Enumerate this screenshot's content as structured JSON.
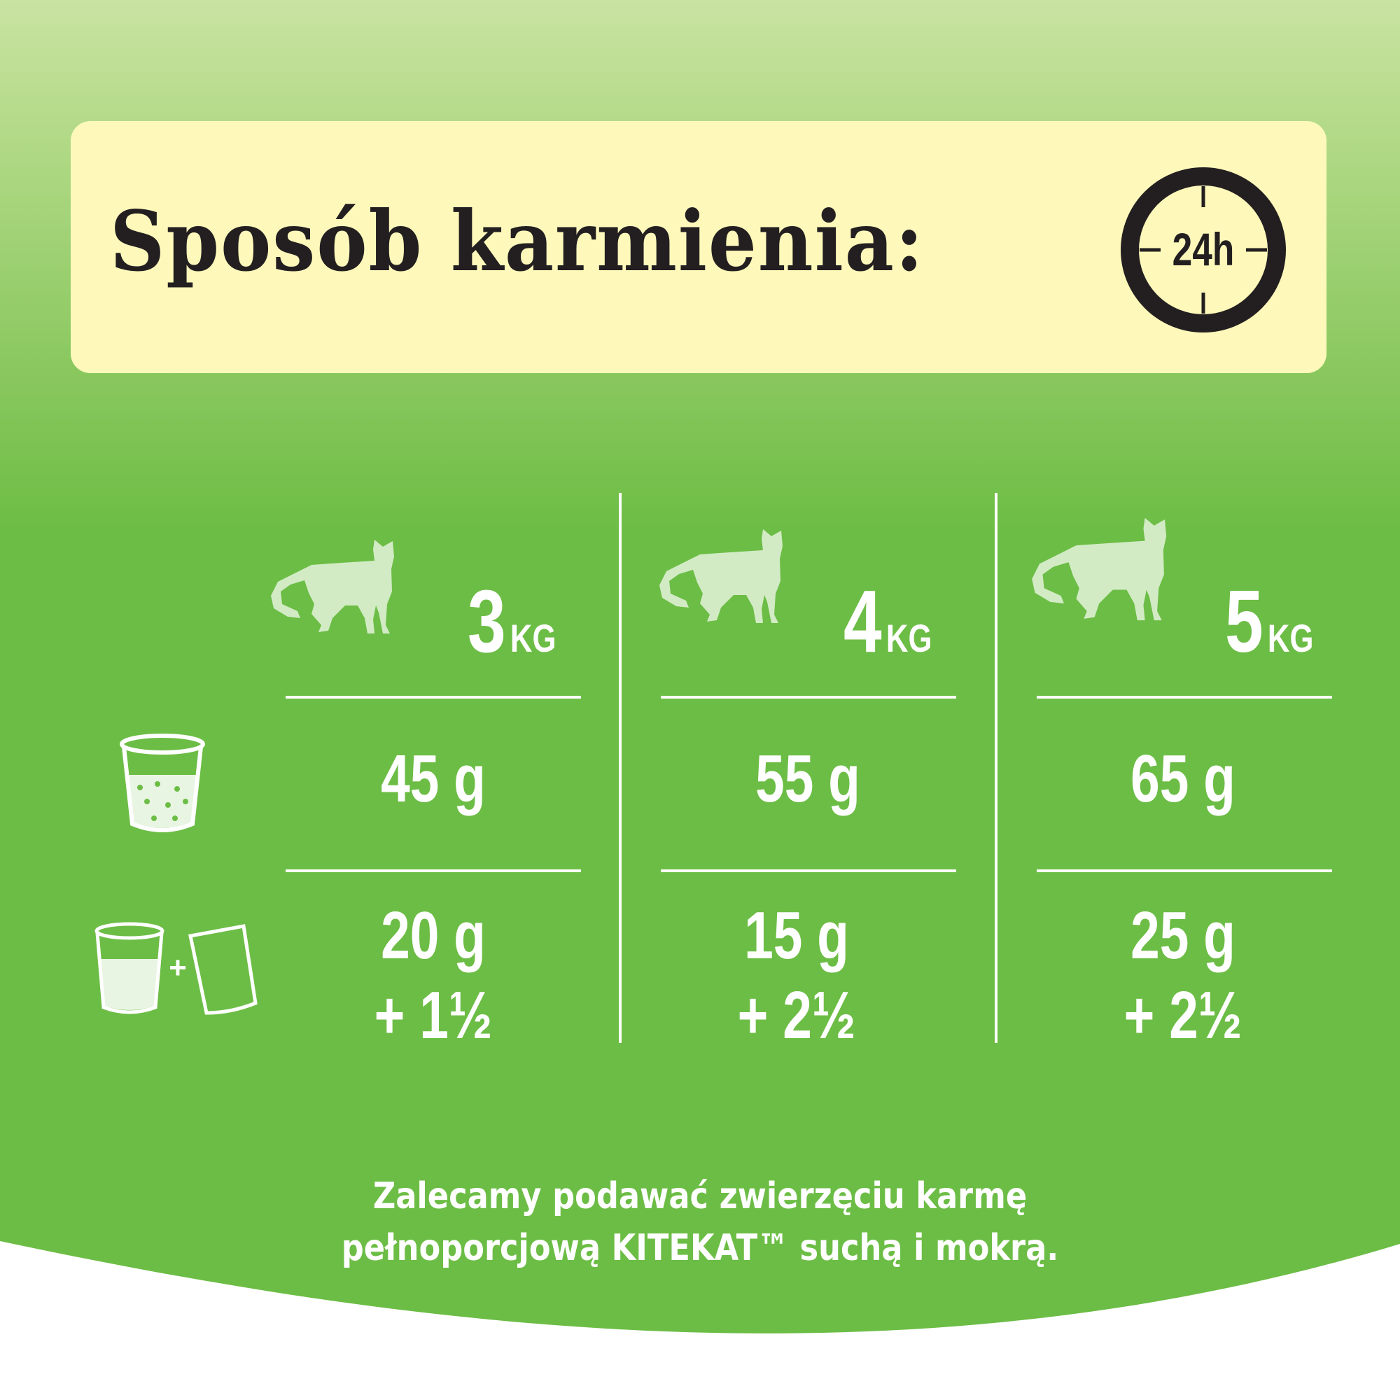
{
  "header": {
    "title": "Sposób karmienia:",
    "clock_icon": "clock-24h-icon",
    "clock_label": "24h"
  },
  "columns": [
    {
      "weight": "3",
      "unit": "KG",
      "dry": "45 g",
      "mixed_dry": "20 g",
      "mixed_wet": "+ 1½"
    },
    {
      "weight": "4",
      "unit": "KG",
      "dry": "55 g",
      "mixed_dry": "15 g",
      "mixed_wet": "+ 2½"
    },
    {
      "weight": "5",
      "unit": "KG",
      "dry": "65 g",
      "mixed_dry": "25 g",
      "mixed_wet": "+ 2½"
    }
  ],
  "rows": {
    "dry_icon": "dry-food-cup-icon",
    "mixed_icon": "cup-plus-pouch-icon"
  },
  "note": {
    "line1": "Zalecamy podawać zwierzęciu karmę",
    "line2": "pełnoporcjową KITEKAT™ suchą i mokrą."
  },
  "colors": {
    "panel": "#fef9bb",
    "green": "#6cbd45",
    "cat": "#d2ebc5",
    "text_dark": "#231f20"
  }
}
